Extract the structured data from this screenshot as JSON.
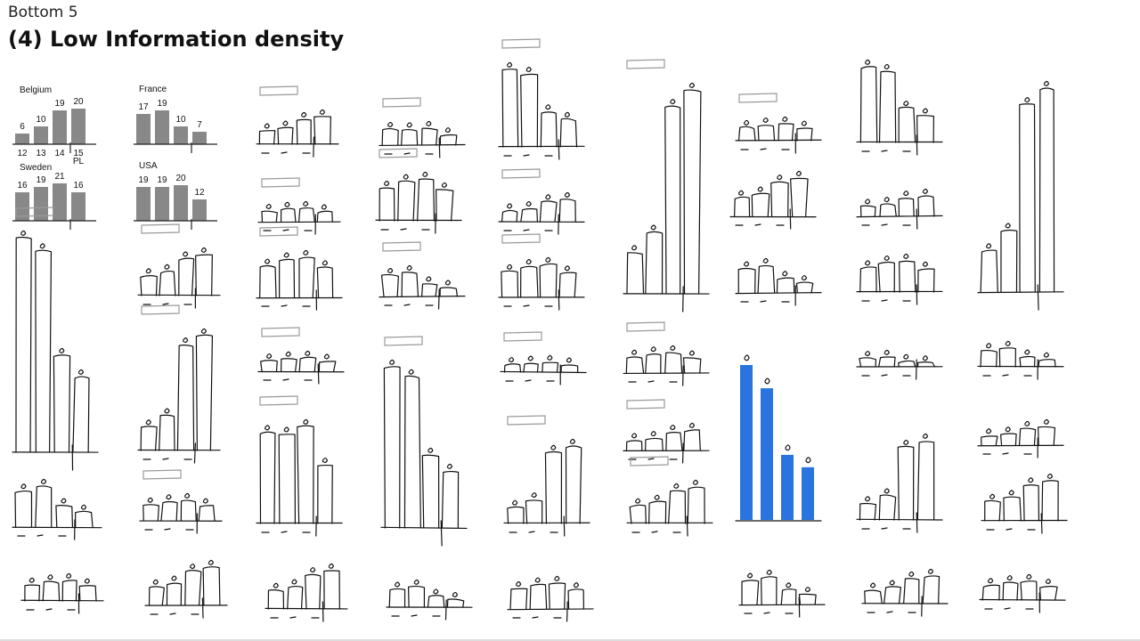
{
  "header": {
    "pretitle": "Bottom 5",
    "title": "(4) Low Information density"
  },
  "chart_data": [
    {
      "type": "bar",
      "title": "Belgium",
      "categories": [
        "12",
        "13",
        "14",
        "15 PL"
      ],
      "values": [
        6,
        10,
        19,
        20
      ],
      "ylim": [
        0,
        22
      ]
    },
    {
      "type": "bar",
      "title": "France",
      "categories": [
        "",
        "",
        "",
        ""
      ],
      "values": [
        17,
        19,
        10,
        7
      ],
      "ylim": [
        0,
        22
      ]
    },
    {
      "type": "bar",
      "title": "Sweden",
      "categories": [
        "",
        "",
        "",
        ""
      ],
      "values": [
        16,
        19,
        21,
        16
      ],
      "ylim": [
        0,
        22
      ]
    },
    {
      "type": "bar",
      "title": "USA",
      "categories": [
        "",
        "",
        "",
        ""
      ],
      "values": [
        19,
        19,
        20,
        12
      ],
      "ylim": [
        0,
        22
      ]
    }
  ],
  "belgium_ticks": [
    "12",
    "13",
    "14",
    "15"
  ],
  "belgium_pl": "PL",
  "highlight_color": "#2a74e0"
}
